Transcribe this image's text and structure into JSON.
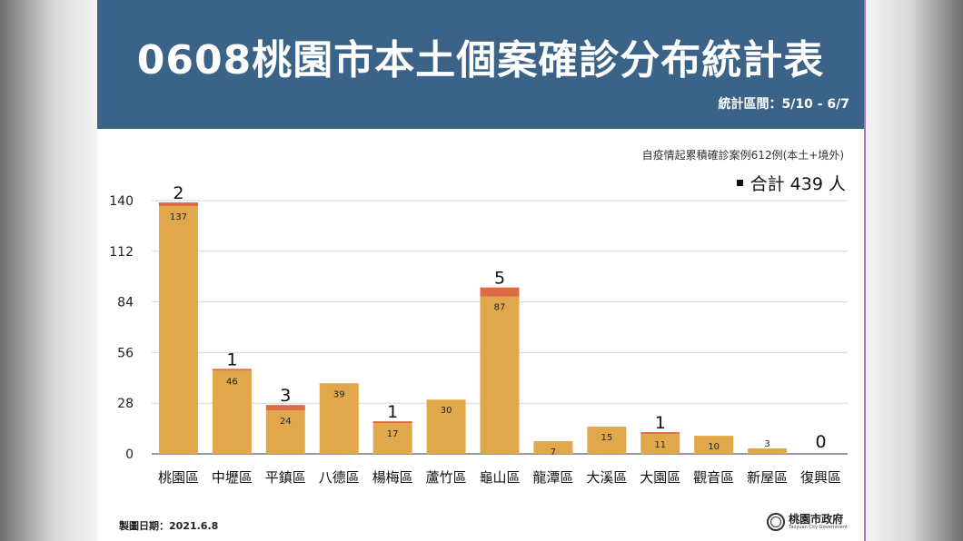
{
  "header": {
    "title": "0608桃園市本土個案確診分布統計表",
    "period": "統計區間：5/10 - 6/7"
  },
  "notes": {
    "cumulative": "自疫情起累積確診案例612例(本土+境外)",
    "total": "合計 439 人"
  },
  "footer": {
    "date": "製圖日期：2021.6.8",
    "gov_name": "桃園市政府",
    "gov_name_en": "Taoyuan City Government"
  },
  "colors": {
    "header_bg": "#3b6287",
    "bar_main": "#e0a84a",
    "bar_top": "#dc6a45"
  },
  "chart_data": {
    "type": "bar",
    "stacked": true,
    "categories": [
      "桃園區",
      "中壢區",
      "平鎮區",
      "八德區",
      "楊梅區",
      "蘆竹區",
      "龜山區",
      "龍潭區",
      "大溪區",
      "大園區",
      "觀音區",
      "新屋區",
      "復興區"
    ],
    "series": [
      {
        "values": [
          137,
          46,
          24,
          39,
          17,
          30,
          87,
          7,
          15,
          11,
          10,
          3,
          0
        ],
        "color": "#e0a84a"
      },
      {
        "values": [
          2,
          1,
          3,
          0,
          1,
          0,
          5,
          0,
          0,
          1,
          0,
          0,
          0
        ],
        "color": "#dc6a45"
      }
    ],
    "top_labels": [
      "2",
      "1",
      "3",
      "",
      "1",
      "",
      "5",
      "",
      "",
      "1",
      "",
      "",
      "0"
    ],
    "yticks": [
      0,
      28,
      56,
      84,
      112,
      140
    ],
    "ylim": [
      0,
      140
    ],
    "grid": true
  }
}
